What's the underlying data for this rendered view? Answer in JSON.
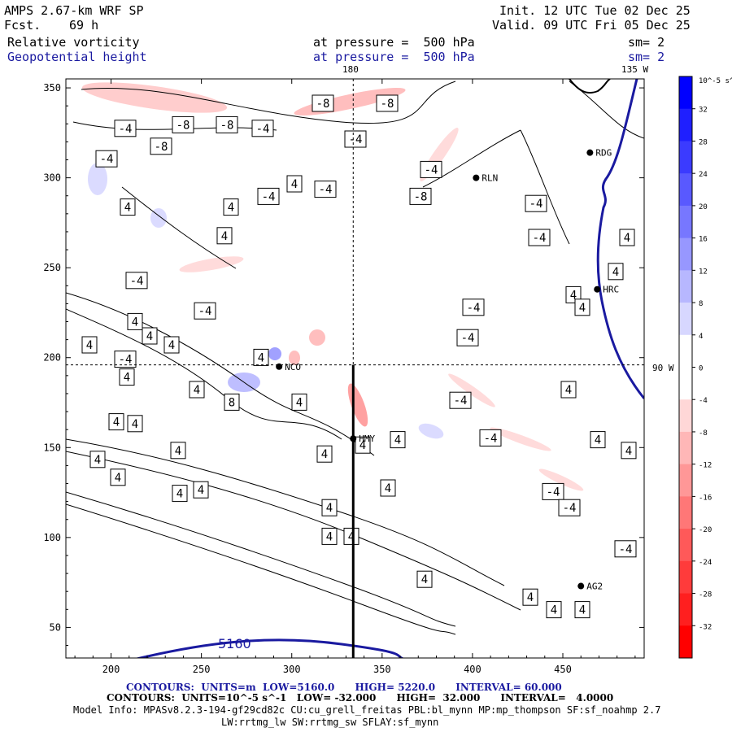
{
  "header": {
    "model": "AMPS 2.67-km WRF SP",
    "fcst_label": "Fcst.",
    "fcst_value": "69 h",
    "init": "Init. 12 UTC Tue 02 Dec 25",
    "valid": "Valid. 09 UTC Fri 05 Dec 25",
    "field1": "Relative vorticity",
    "field1_level": "at pressure =  500 hPa",
    "field1_sm": "sm= 2",
    "field2": "Geopotential height",
    "field2_level": "at pressure =  500 hPa",
    "field2_sm": "sm= 2"
  },
  "map_labels": {
    "lon_180": "180",
    "lon_135w": "135 W",
    "lat_90w": "90 W",
    "height_contour": "5160"
  },
  "stations": [
    {
      "name": "RDG",
      "x": 465,
      "y": 314
    },
    {
      "name": "RLN",
      "x": 402,
      "y": 300
    },
    {
      "name": "HRC",
      "x": 469,
      "y": 238
    },
    {
      "name": "NCO",
      "x": 293,
      "y": 195
    },
    {
      "name": "HMY",
      "x": 334,
      "y": 155
    },
    {
      "name": "AG2",
      "x": 460,
      "y": 73
    }
  ],
  "colorbar": {
    "unit_label": "10^-5 s^-1",
    "ticks": [
      "32",
      "28",
      "24",
      "20",
      "16",
      "12",
      "8",
      "4",
      "0",
      "-4",
      "-8",
      "-12",
      "-16",
      "-20",
      "-24",
      "-28",
      "-32"
    ],
    "colors": [
      "#0000ff",
      "#1f1fff",
      "#3b3bff",
      "#5959ff",
      "#7777ff",
      "#9797ff",
      "#b7b7ff",
      "#d7d7ff",
      "#ffffff",
      "#ffffff",
      "#ffd7d7",
      "#ffb7b7",
      "#ff9797",
      "#ff7777",
      "#ff5959",
      "#ff3b3b",
      "#ff1f1f",
      "#ff0000"
    ]
  },
  "chart_data": {
    "type": "heatmap",
    "x_ticks": [
      200,
      250,
      300,
      350,
      400,
      450
    ],
    "y_ticks": [
      50,
      100,
      150,
      200,
      250,
      300,
      350
    ],
    "xlim": [
      175,
      495
    ],
    "ylim": [
      33,
      355
    ],
    "crosshair": {
      "x": 334,
      "y": 196
    },
    "vorticity_labels": [
      {
        "text": "-8",
        "x": 225,
        "y": 338
      },
      {
        "text": "-8",
        "x": 279,
        "y": 338
      },
      {
        "text": "-8",
        "x": 198,
        "y": 326
      },
      {
        "text": "-4",
        "x": 154,
        "y": 336
      },
      {
        "text": "-4",
        "x": 131,
        "y": 319
      },
      {
        "text": "-4",
        "x": 323,
        "y": 336
      },
      {
        "text": "-8",
        "x": 397,
        "y": 350
      },
      {
        "text": "-8",
        "x": 476,
        "y": 350
      },
      {
        "text": "-4",
        "x": 437,
        "y": 330
      },
      {
        "text": "-4",
        "x": 530,
        "y": 313
      },
      {
        "text": "-8",
        "x": 517,
        "y": 298
      },
      {
        "text": "4",
        "x": 362,
        "y": 305
      },
      {
        "text": "-4",
        "x": 400,
        "y": 302
      },
      {
        "text": "-4",
        "x": 330,
        "y": 298
      },
      {
        "text": "4",
        "x": 157,
        "y": 292
      },
      {
        "text": "4",
        "x": 284,
        "y": 292
      },
      {
        "text": "4",
        "x": 276,
        "y": 276
      },
      {
        "text": "-4",
        "x": 659,
        "y": 294
      },
      {
        "text": "-4",
        "x": 663,
        "y": 275
      },
      {
        "text": "4",
        "x": 771,
        "y": 275
      },
      {
        "text": "4",
        "x": 757,
        "y": 256
      },
      {
        "text": "-4",
        "x": 168,
        "y": 251
      },
      {
        "text": "-4",
        "x": 252,
        "y": 234
      },
      {
        "text": "4",
        "x": 166,
        "y": 228
      },
      {
        "text": "4",
        "x": 705,
        "y": 243
      },
      {
        "text": "4",
        "x": 716,
        "y": 236
      },
      {
        "text": "-4",
        "x": 582,
        "y": 236
      },
      {
        "text": "4",
        "x": 184,
        "y": 220
      },
      {
        "text": "4",
        "x": 110,
        "y": 215
      },
      {
        "text": "4",
        "x": 211,
        "y": 215
      },
      {
        "text": "-4",
        "x": 575,
        "y": 219
      },
      {
        "text": "-4",
        "x": 154,
        "y": 207
      },
      {
        "text": "4",
        "x": 321,
        "y": 208
      },
      {
        "text": "4",
        "x": 156,
        "y": 197
      },
      {
        "text": "4",
        "x": 242,
        "y": 190
      },
      {
        "text": "8",
        "x": 285,
        "y": 183
      },
      {
        "text": "4",
        "x": 368,
        "y": 183
      },
      {
        "text": "-4",
        "x": 566,
        "y": 184
      },
      {
        "text": "4",
        "x": 699,
        "y": 190
      },
      {
        "text": "4",
        "x": 143,
        "y": 172
      },
      {
        "text": "4",
        "x": 166,
        "y": 171
      },
      {
        "text": "-4",
        "x": 603,
        "y": 163
      },
      {
        "text": "4",
        "x": 735,
        "y": 162
      },
      {
        "text": "4",
        "x": 489,
        "y": 162
      },
      {
        "text": "4",
        "x": 446,
        "y": 159
      },
      {
        "text": "4",
        "x": 219,
        "y": 156
      },
      {
        "text": "4",
        "x": 399,
        "y": 154
      },
      {
        "text": "4",
        "x": 773,
        "y": 156
      },
      {
        "text": "4",
        "x": 120,
        "y": 151
      },
      {
        "text": "4",
        "x": 145,
        "y": 141
      },
      {
        "text": "4",
        "x": 477,
        "y": 135
      },
      {
        "text": "-4",
        "x": 680,
        "y": 133
      },
      {
        "text": "4",
        "x": 221,
        "y": 132
      },
      {
        "text": "4",
        "x": 247,
        "y": 134
      },
      {
        "text": "-4",
        "x": 700,
        "y": 124
      },
      {
        "text": "4",
        "x": 405,
        "y": 124
      },
      {
        "text": "4",
        "x": 405,
        "y": 108
      },
      {
        "text": "4",
        "x": 432,
        "y": 108
      },
      {
        "text": "-4",
        "x": 769,
        "y": 101
      },
      {
        "text": "4",
        "x": 522,
        "y": 84
      },
      {
        "text": "4",
        "x": 652,
        "y": 74
      },
      {
        "text": "4",
        "x": 681,
        "y": 67
      },
      {
        "text": "4",
        "x": 716,
        "y": 67
      }
    ]
  },
  "footer": {
    "contours1_prefix": "CONTOURS:  UNITS=m  LOW=",
    "contours1_low": "5160.0",
    "contours1_high_label": "HIGH=",
    "contours1_high": "5220.0",
    "contours1_interval_label": "INTERVAL=",
    "contours1_interval": "60.000",
    "contours2": "CONTOURS:  UNITS=10^-5 s^-1   LOW= -32.000      HIGH=  32.000      INTERVAL=   4.0000",
    "model_info": "Model Info: MPASv8.2.3-194-gf29cd82c CU:cu_grell_freitas PBL:bl_mynn MP:mp_thompson SF:sf_noahmp 2.7",
    "model_info2": "LW:rrtmg_lw SW:rrtmg_sw SFLAY:sf_mynn"
  }
}
